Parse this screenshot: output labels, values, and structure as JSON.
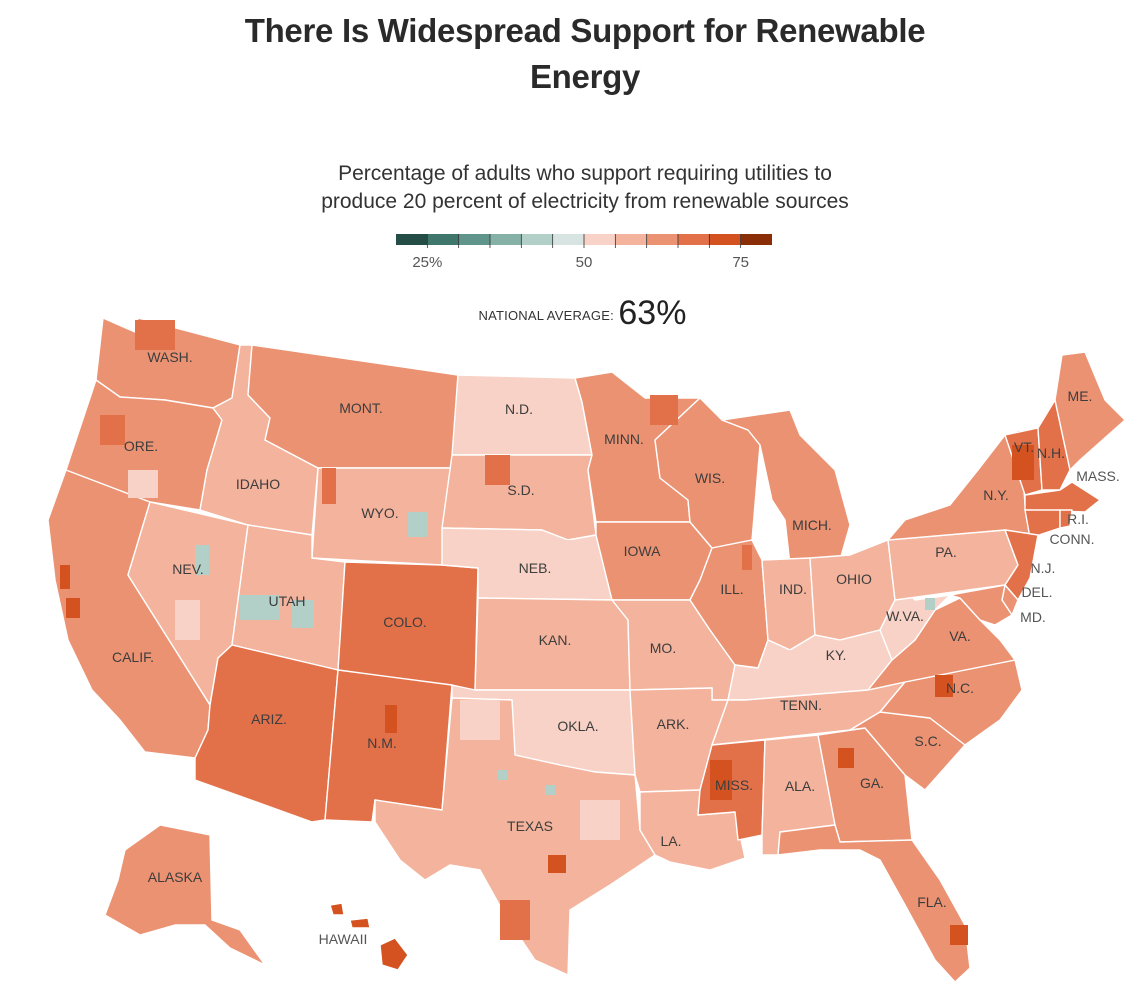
{
  "title": "There Is Widespread Support for Renewable Energy",
  "subtitle_line1": "Percentage of adults who support requiring utilities to",
  "subtitle_line2": "produce 20 percent of electricity from renewable sources",
  "legend": {
    "colors": [
      "#234d45",
      "#3f776d",
      "#5f958a",
      "#86b1a7",
      "#b2cfc8",
      "#d7e4e1",
      "#f8d2c6",
      "#f3b39c",
      "#eb9272",
      "#e2714a",
      "#d3521f",
      "#8a2e07"
    ],
    "labels": [
      {
        "text": "25%",
        "value": 25
      },
      {
        "text": "50",
        "value": 50
      },
      {
        "text": "75",
        "value": 75
      }
    ],
    "min": 20,
    "max": 80
  },
  "national_average": {
    "label": "NATIONAL AVERAGE:",
    "value": "63%"
  },
  "states": [
    {
      "id": "wa",
      "label": "WASH.",
      "fill": "#eb9272"
    },
    {
      "id": "or",
      "label": "ORE.",
      "fill": "#eb9272"
    },
    {
      "id": "ca",
      "label": "CALIF.",
      "fill": "#eb9272"
    },
    {
      "id": "nv",
      "label": "NEV.",
      "fill": "#f3b39c"
    },
    {
      "id": "id",
      "label": "IDAHO",
      "fill": "#f3b39c"
    },
    {
      "id": "mt",
      "label": "MONT.",
      "fill": "#eb9272"
    },
    {
      "id": "wy",
      "label": "WYO.",
      "fill": "#f3b39c"
    },
    {
      "id": "ut",
      "label": "UTAH",
      "fill": "#f3b39c"
    },
    {
      "id": "az",
      "label": "ARIZ.",
      "fill": "#e2714a"
    },
    {
      "id": "co",
      "label": "COLO.",
      "fill": "#e2714a"
    },
    {
      "id": "nm",
      "label": "N.M.",
      "fill": "#e2714a"
    },
    {
      "id": "nd",
      "label": "N.D.",
      "fill": "#f8d2c6"
    },
    {
      "id": "sd",
      "label": "S.D.",
      "fill": "#f3b39c"
    },
    {
      "id": "ne",
      "label": "NEB.",
      "fill": "#f8d2c6"
    },
    {
      "id": "ks",
      "label": "KAN.",
      "fill": "#f3b39c"
    },
    {
      "id": "ok",
      "label": "OKLA.",
      "fill": "#f8d2c6"
    },
    {
      "id": "tx",
      "label": "TEXAS",
      "fill": "#f3b39c"
    },
    {
      "id": "mn",
      "label": "MINN.",
      "fill": "#eb9272"
    },
    {
      "id": "ia",
      "label": "IOWA",
      "fill": "#eb9272"
    },
    {
      "id": "mo",
      "label": "MO.",
      "fill": "#f3b39c"
    },
    {
      "id": "ar",
      "label": "ARK.",
      "fill": "#f3b39c"
    },
    {
      "id": "la",
      "label": "LA.",
      "fill": "#f3b39c"
    },
    {
      "id": "wi",
      "label": "WIS.",
      "fill": "#eb9272"
    },
    {
      "id": "il",
      "label": "ILL.",
      "fill": "#eb9272"
    },
    {
      "id": "mi",
      "label": "MICH.",
      "fill": "#eb9272"
    },
    {
      "id": "in",
      "label": "IND.",
      "fill": "#f3b39c"
    },
    {
      "id": "oh",
      "label": "OHIO",
      "fill": "#f3b39c"
    },
    {
      "id": "ky",
      "label": "KY.",
      "fill": "#f8d2c6"
    },
    {
      "id": "tn",
      "label": "TENN.",
      "fill": "#f3b39c"
    },
    {
      "id": "ms",
      "label": "MISS.",
      "fill": "#e2714a"
    },
    {
      "id": "al",
      "label": "ALA.",
      "fill": "#f3b39c"
    },
    {
      "id": "ga",
      "label": "GA.",
      "fill": "#eb9272"
    },
    {
      "id": "fl",
      "label": "FLA.",
      "fill": "#eb9272"
    },
    {
      "id": "sc",
      "label": "S.C.",
      "fill": "#eb9272"
    },
    {
      "id": "nc",
      "label": "N.C.",
      "fill": "#eb9272"
    },
    {
      "id": "va",
      "label": "VA.",
      "fill": "#eb9272"
    },
    {
      "id": "wv",
      "label": "W.VA.",
      "fill": "#f8d2c6"
    },
    {
      "id": "pa",
      "label": "PA.",
      "fill": "#f3b39c"
    },
    {
      "id": "ny",
      "label": "N.Y.",
      "fill": "#eb9272"
    },
    {
      "id": "vt",
      "label": "VT.",
      "fill": "#e2714a"
    },
    {
      "id": "nh",
      "label": "N.H.",
      "fill": "#e2714a"
    },
    {
      "id": "me",
      "label": "ME.",
      "fill": "#eb9272"
    },
    {
      "id": "ma",
      "label": "MASS.",
      "fill": "#e2714a"
    },
    {
      "id": "ri",
      "label": "R.I.",
      "fill": "#e2714a"
    },
    {
      "id": "ct",
      "label": "CONN.",
      "fill": "#e2714a"
    },
    {
      "id": "nj",
      "label": "N.J.",
      "fill": "#e2714a"
    },
    {
      "id": "de",
      "label": "DEL.",
      "fill": "#eb9272"
    },
    {
      "id": "md",
      "label": "MD.",
      "fill": "#eb9272"
    },
    {
      "id": "ak",
      "label": "ALASKA",
      "fill": "#eb9272"
    },
    {
      "id": "hi",
      "label": "HAWAII",
      "fill": "#d3521f"
    }
  ]
}
